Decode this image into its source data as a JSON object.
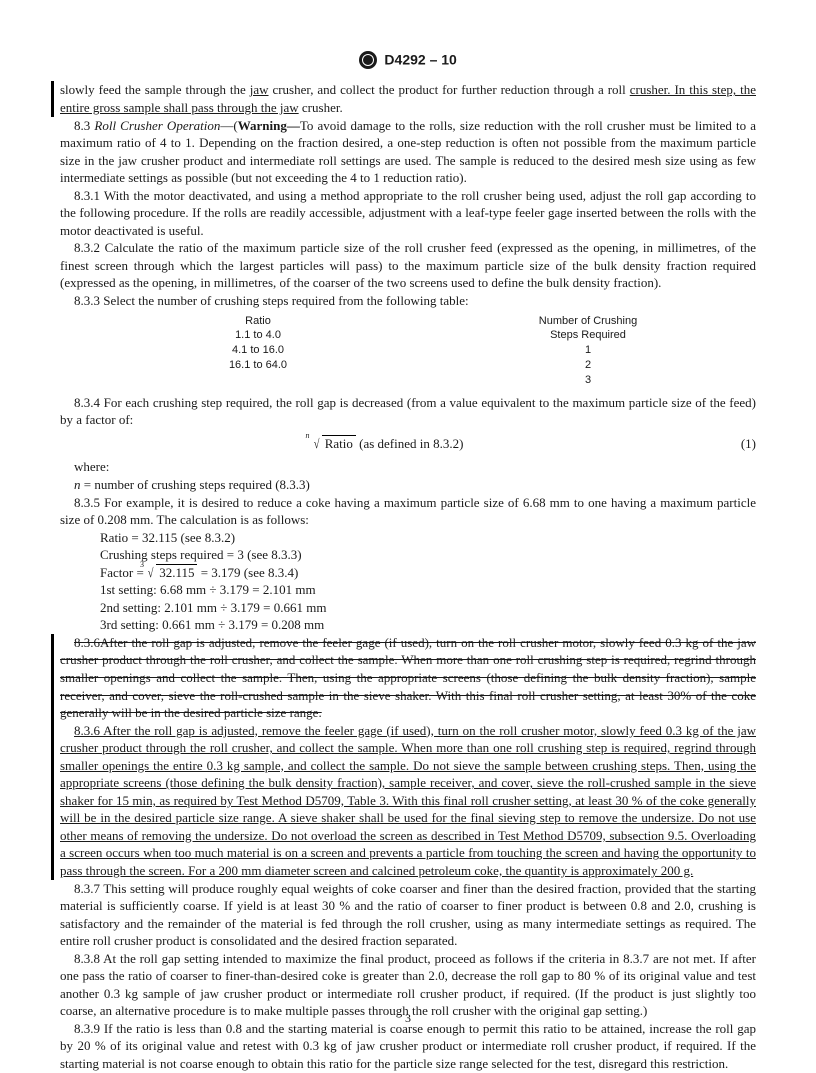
{
  "header": {
    "standard": "D4292 – 10"
  },
  "p_changed1_a": "slowly feed the sample through the ",
  "p_changed1_b": "jaw",
  "p_changed1_c": " crusher, and collect the product for further reduction through a roll ",
  "p_changed1_d": "crusher. In this step, the entire gross sample shall pass through the jaw",
  "p_changed1_e": " crusher.",
  "s83_label": "8.3 ",
  "s83_title": "Roll Crusher Operation",
  "s83_dash": "—(",
  "s83_warn": "Warning—",
  "s83_body": "To avoid damage to the rolls, size reduction with the roll crusher must be limited to a maximum ratio of 4 to 1. Depending on the fraction desired, a one-step reduction is often not possible from the maximum particle size in the jaw crusher product and intermediate roll settings are used. The sample is reduced to the desired mesh size using as few intermediate settings as possible (but not exceeding the 4 to 1 reduction ratio).",
  "s831": "8.3.1 With the motor deactivated, and using a method appropriate to the roll crusher being used, adjust the roll gap according to the following procedure. If the rolls are readily accessible, adjustment with a leaf-type feeler gage inserted between the rolls with the motor deactivated is useful.",
  "s832": "8.3.2 Calculate the ratio of the maximum particle size of the roll crusher feed (expressed as the opening, in millimetres, of the finest screen through which the largest particles will pass) to the maximum particle size of the bulk density fraction required (expressed as the opening, in millimetres, of the coarser of the two screens used to define the bulk density fraction).",
  "s833": "8.3.3 Select the number of crushing steps required from the following table:",
  "table": {
    "head_left": "Ratio",
    "head_right_l1": "Number of Crushing",
    "head_right_l2": "Steps Required",
    "rows": [
      {
        "ratio": "1.1 to 4.0",
        "steps": "1"
      },
      {
        "ratio": "4.1 to 16.0",
        "steps": "2"
      },
      {
        "ratio": "16.1 to 64.0",
        "steps": "3"
      }
    ]
  },
  "s834": "8.3.4 For each crushing step required, the roll gap is decreased (from a value equivalent to the maximum particle size of the feed) by a factor of:",
  "eq1_index": "n",
  "eq1_radicand": "Ratio",
  "eq1_suffix": " (as defined in 8.3.2)",
  "eq1_num": "(1)",
  "where_label": "where:",
  "where_n": "n",
  "where_eq": "  =  number of crushing steps required (8.3.3)",
  "s835": "8.3.5 For example, it is desired to reduce a coke having a maximum particle size of 6.68 mm to one having a maximum particle size of 0.208 mm. The calculation is as follows:",
  "calc": {
    "l1": "Ratio = 32.115 (see 8.3.2)",
    "l2": "Crushing steps required = 3 (see 8.3.3)",
    "l3a": "Factor =  ",
    "l3_root_idx": "3",
    "l3_root_rad": "32.115",
    "l3b": "  = 3.179 (see 8.3.4)",
    "l4": "1st setting: 6.68 mm ÷ 3.179 = 2.101 mm",
    "l5": "2nd setting: 2.101 mm ÷ 3.179 = 0.661 mm",
    "l6": "3rd setting: 0.661 mm ÷ 3.179 = 0.208 mm"
  },
  "s836_strike": "8.3.6After the roll gap is adjusted, remove the feeler gage (if used), turn on the roll crusher motor, slowly feed 0.3 kg of the jaw crusher product through the roll crusher, and collect the sample. When more than one roll crushing step is required, regrind through smaller openings and collect the sample. Then, using the appropriate screens (those defining the bulk density fraction), sample receiver, and cover, sieve the roll-crushed sample in the sieve shaker. With this final roll crusher setting, at least 30% of the coke generally will be in the desired particle size range.",
  "s836_new": "8.3.6 After the roll gap is adjusted, remove the feeler gage (if used), turn on the roll crusher motor, slowly feed 0.3 kg of the jaw crusher product through the roll crusher, and collect the sample. When more than one roll crushing step is required, regrind through smaller openings the entire 0.3 kg sample, and collect the sample. Do not sieve the sample between crushing steps. Then, using the appropriate screens (those defining the bulk density fraction), sample receiver, and cover, sieve the roll-crushed sample in the sieve shaker for 15 min, as required by Test Method D5709, Table 3. With this final roll crusher setting, at least 30 % of the coke generally will be in the desired particle size range. A sieve shaker shall be used for the final sieving step to remove the undersize. Do not use other means of removing the undersize. Do not overload the screen as described in Test Method D5709, subsection 9.5. Overloading a screen occurs when too much material is on a screen and prevents a particle from touching the screen and having the opportunity to pass through the screen. For a 200 mm diameter screen and calcined petroleum coke, the quantity is approximately 200 g.",
  "s837": "8.3.7 This setting will produce roughly equal weights of coke coarser and finer than the desired fraction, provided that the starting material is sufficiently coarse. If yield is at least 30 % and the ratio of coarser to finer product is between 0.8 and 2.0, crushing is satisfactory and the remainder of the material is fed through the roll crusher, using as many intermediate settings as required. The entire roll crusher product is consolidated and the desired fraction separated.",
  "s838": "8.3.8 At the roll gap setting intended to maximize the final product, proceed as follows if the criteria in 8.3.7 are not met. If after one pass the ratio of coarser to finer-than-desired coke is greater than 2.0, decrease the roll gap to 80 % of its original value and test another 0.3 kg sample of jaw crusher product or intermediate roll crusher product, if required. (If the product is just slightly too coarse, an alternative procedure is to make multiple passes through the roll crusher with the original gap setting.)",
  "s839": "8.3.9 If the ratio is less than 0.8 and the starting material is coarse enough to permit this ratio to be attained, increase the roll gap by 20 % of its original value and retest with 0.3 kg of jaw crusher product or intermediate roll crusher product, if required. If the starting material is not coarse enough to obtain this ratio for the particle size range selected for the test, disregard this restriction.",
  "pagenum": "3"
}
